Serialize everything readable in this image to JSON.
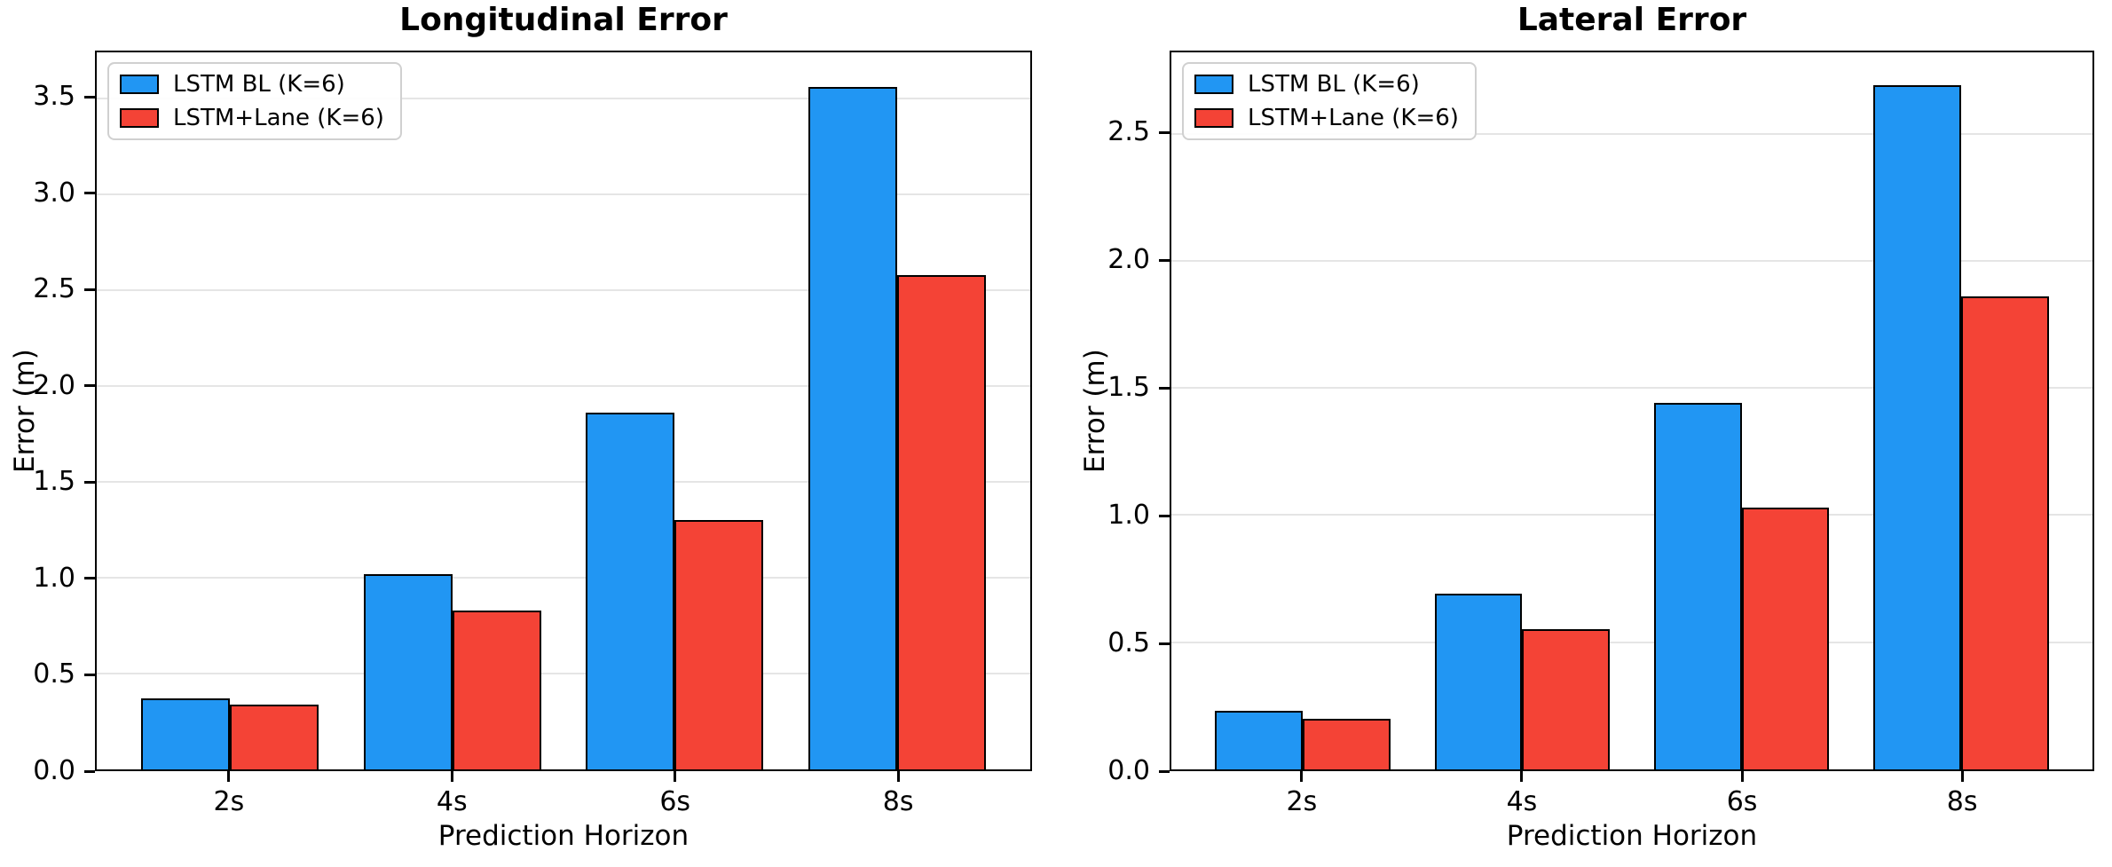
{
  "figure": {
    "background": "#ffffff",
    "grid_color": "#e5e5e5",
    "bar_edge_color": "#000000"
  },
  "chart_data": [
    {
      "type": "bar",
      "title": "Longitudinal Error",
      "xlabel": "Prediction Horizon",
      "ylabel": "Error (m)",
      "categories": [
        "2s",
        "4s",
        "6s",
        "8s"
      ],
      "series": [
        {
          "name": "LSTM BL (K=6)",
          "color": "#2196F3",
          "values": [
            0.37,
            1.02,
            1.86,
            3.56
          ]
        },
        {
          "name": "LSTM+Lane (K=6)",
          "color": "#F44336",
          "values": [
            0.34,
            0.83,
            1.3,
            2.58
          ]
        }
      ],
      "yticks": [
        "0.0",
        "0.5",
        "1.0",
        "1.5",
        "2.0",
        "2.5",
        "3.0",
        "3.5"
      ],
      "ylim": [
        0,
        3.74
      ],
      "grid": true,
      "legend_position": "upper left"
    },
    {
      "type": "bar",
      "title": "Lateral Error",
      "xlabel": "Prediction Horizon",
      "ylabel": "Error (m)",
      "categories": [
        "2s",
        "4s",
        "6s",
        "8s"
      ],
      "series": [
        {
          "name": "LSTM BL (K=6)",
          "color": "#2196F3",
          "values": [
            0.23,
            0.69,
            1.44,
            2.69
          ]
        },
        {
          "name": "LSTM+Lane (K=6)",
          "color": "#F44336",
          "values": [
            0.2,
            0.55,
            1.03,
            1.86
          ]
        }
      ],
      "yticks": [
        "0.0",
        "0.5",
        "1.0",
        "1.5",
        "2.0",
        "2.5"
      ],
      "ylim": [
        0,
        2.82
      ],
      "grid": true,
      "legend_position": "upper left"
    }
  ]
}
